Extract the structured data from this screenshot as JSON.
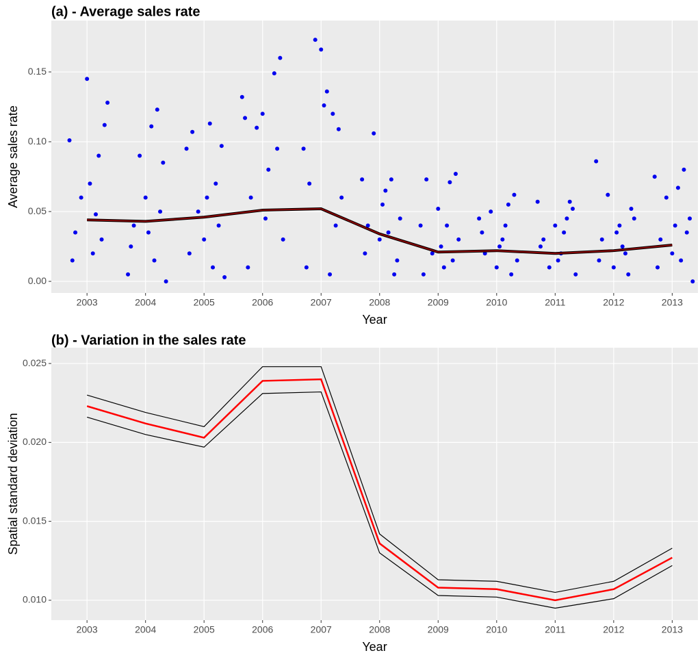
{
  "chart_data": [
    {
      "type": "scatter",
      "title": "(a) - Average sales rate",
      "xlabel": "Year",
      "ylabel": "Average sales rate",
      "xlim": [
        2002.39,
        2013.44
      ],
      "ylim": [
        -0.0083,
        0.1868
      ],
      "xticks": [
        2003,
        2004,
        2005,
        2006,
        2007,
        2008,
        2009,
        2010,
        2011,
        2012,
        2013
      ],
      "yticks": [
        {
          "value": 0,
          "label": "0.00"
        },
        0.05,
        {
          "value": 0.1,
          "label": "0.10"
        },
        0.15
      ],
      "grid": true,
      "series": [
        {
          "color": "#0000ee",
          "style": "points",
          "x": [
            2002.7,
            2002.8,
            2002.9,
            2003.0,
            2003.1,
            2003.2,
            2003.3,
            2003.35,
            2002.75,
            2003.05,
            2003.25,
            2003.15,
            2003.7,
            2003.8,
            2003.9,
            2004.0,
            2004.1,
            2004.2,
            2004.3,
            2004.35,
            2003.75,
            2004.05,
            2004.25,
            2004.15,
            2004.7,
            2004.8,
            2004.9,
            2005.0,
            2005.1,
            2005.2,
            2005.3,
            2005.35,
            2004.75,
            2005.05,
            2005.25,
            2005.15,
            2005.65,
            2005.7,
            2005.8,
            2005.9,
            2006.0,
            2006.1,
            2006.2,
            2006.3,
            2006.35,
            2005.75,
            2006.05,
            2006.25,
            2006.7,
            2006.8,
            2006.9,
            2007.0,
            2007.05,
            2007.1,
            2007.2,
            2007.3,
            2007.35,
            2006.75,
            2007.15,
            2007.25,
            2007.7,
            2007.8,
            2007.9,
            2008.0,
            2008.1,
            2008.2,
            2008.3,
            2008.35,
            2007.75,
            2008.05,
            2008.25,
            2008.15,
            2008.7,
            2008.8,
            2008.9,
            2009.0,
            2009.1,
            2009.2,
            2009.3,
            2009.35,
            2008.75,
            2009.05,
            2009.25,
            2009.15,
            2009.7,
            2009.8,
            2009.9,
            2010.0,
            2010.1,
            2010.2,
            2010.3,
            2010.35,
            2009.75,
            2010.05,
            2010.25,
            2010.15,
            2010.7,
            2010.8,
            2010.9,
            2011.0,
            2011.1,
            2011.2,
            2011.3,
            2011.35,
            2010.75,
            2011.05,
            2011.25,
            2011.15,
            2011.7,
            2011.8,
            2011.9,
            2012.0,
            2012.1,
            2012.2,
            2012.3,
            2012.35,
            2011.75,
            2012.05,
            2012.25,
            2012.15,
            2012.7,
            2012.8,
            2012.9,
            2013.0,
            2013.1,
            2013.2,
            2013.3,
            2013.35,
            2012.75,
            2013.05,
            2013.25,
            2013.15
          ],
          "values": [
            0.101,
            0.035,
            0.06,
            0.145,
            0.02,
            0.09,
            0.112,
            0.128,
            0.015,
            0.07,
            0.03,
            0.048,
            0.005,
            0.04,
            0.09,
            0.06,
            0.111,
            0.123,
            0.085,
            0.0,
            0.025,
            0.035,
            0.05,
            0.015,
            0.095,
            0.107,
            0.05,
            0.03,
            0.113,
            0.07,
            0.097,
            0.003,
            0.02,
            0.06,
            0.04,
            0.01,
            0.132,
            0.117,
            0.06,
            0.11,
            0.12,
            0.08,
            0.149,
            0.16,
            0.03,
            0.01,
            0.045,
            0.095,
            0.095,
            0.07,
            0.173,
            0.166,
            0.126,
            0.136,
            0.12,
            0.109,
            0.06,
            0.01,
            0.005,
            0.04,
            0.073,
            0.04,
            0.106,
            0.03,
            0.065,
            0.073,
            0.015,
            0.045,
            0.02,
            0.055,
            0.005,
            0.035,
            0.04,
            0.073,
            0.02,
            0.052,
            0.01,
            0.071,
            0.077,
            0.03,
            0.005,
            0.025,
            0.015,
            0.04,
            0.045,
            0.02,
            0.05,
            0.01,
            0.03,
            0.055,
            0.062,
            0.015,
            0.035,
            0.025,
            0.005,
            0.04,
            0.057,
            0.03,
            0.01,
            0.04,
            0.02,
            0.045,
            0.052,
            0.005,
            0.025,
            0.015,
            0.057,
            0.035,
            0.086,
            0.03,
            0.062,
            0.01,
            0.04,
            0.02,
            0.052,
            0.045,
            0.015,
            0.035,
            0.005,
            0.025,
            0.075,
            0.03,
            0.06,
            0.02,
            0.067,
            0.08,
            0.045,
            0.0,
            0.01,
            0.04,
            0.035,
            0.015
          ]
        },
        {
          "color": "#8b0000",
          "style": "line",
          "x": [
            2003,
            2004,
            2005,
            2006,
            2007,
            2008,
            2009,
            2010,
            2011,
            2012,
            2013
          ],
          "values": [
            0.044,
            0.043,
            0.046,
            0.051,
            0.052,
            0.034,
            0.021,
            0.022,
            0.02,
            0.022,
            0.026
          ]
        }
      ]
    },
    {
      "type": "line",
      "title": "(b) - Variation in the sales rate",
      "xlabel": "Year",
      "ylabel": "Spatial standard deviation",
      "xlim": [
        2002.39,
        2013.44
      ],
      "ylim": [
        0.00874,
        0.026
      ],
      "xticks": [
        2003,
        2004,
        2005,
        2006,
        2007,
        2008,
        2009,
        2010,
        2011,
        2012,
        2013
      ],
      "yticks": [
        {
          "value": 0.01,
          "label": "0.010"
        },
        0.015,
        {
          "value": 0.02,
          "label": "0.020"
        },
        0.025
      ],
      "grid": true,
      "series": [
        {
          "color": "#000000",
          "width": 1.2,
          "x": [
            2003,
            2004,
            2005,
            2006,
            2007,
            2008,
            2009,
            2010,
            2011,
            2012,
            2013
          ],
          "values": [
            0.023,
            0.0219,
            0.021,
            0.0248,
            0.0248,
            0.0142,
            0.0113,
            0.0112,
            0.0105,
            0.0112,
            0.0133
          ]
        },
        {
          "color": "#000000",
          "width": 1.2,
          "x": [
            2003,
            2004,
            2005,
            2006,
            2007,
            2008,
            2009,
            2010,
            2011,
            2012,
            2013
          ],
          "values": [
            0.0216,
            0.0205,
            0.0197,
            0.0231,
            0.0232,
            0.013,
            0.0103,
            0.0102,
            0.0095,
            0.0101,
            0.0122
          ]
        },
        {
          "color": "#ff0000",
          "width": 2.5,
          "x": [
            2003,
            2004,
            2005,
            2006,
            2007,
            2008,
            2009,
            2010,
            2011,
            2012,
            2013
          ],
          "values": [
            0.0223,
            0.0212,
            0.0203,
            0.0239,
            0.024,
            0.0136,
            0.0108,
            0.0107,
            0.01,
            0.0107,
            0.0127
          ]
        }
      ]
    }
  ]
}
